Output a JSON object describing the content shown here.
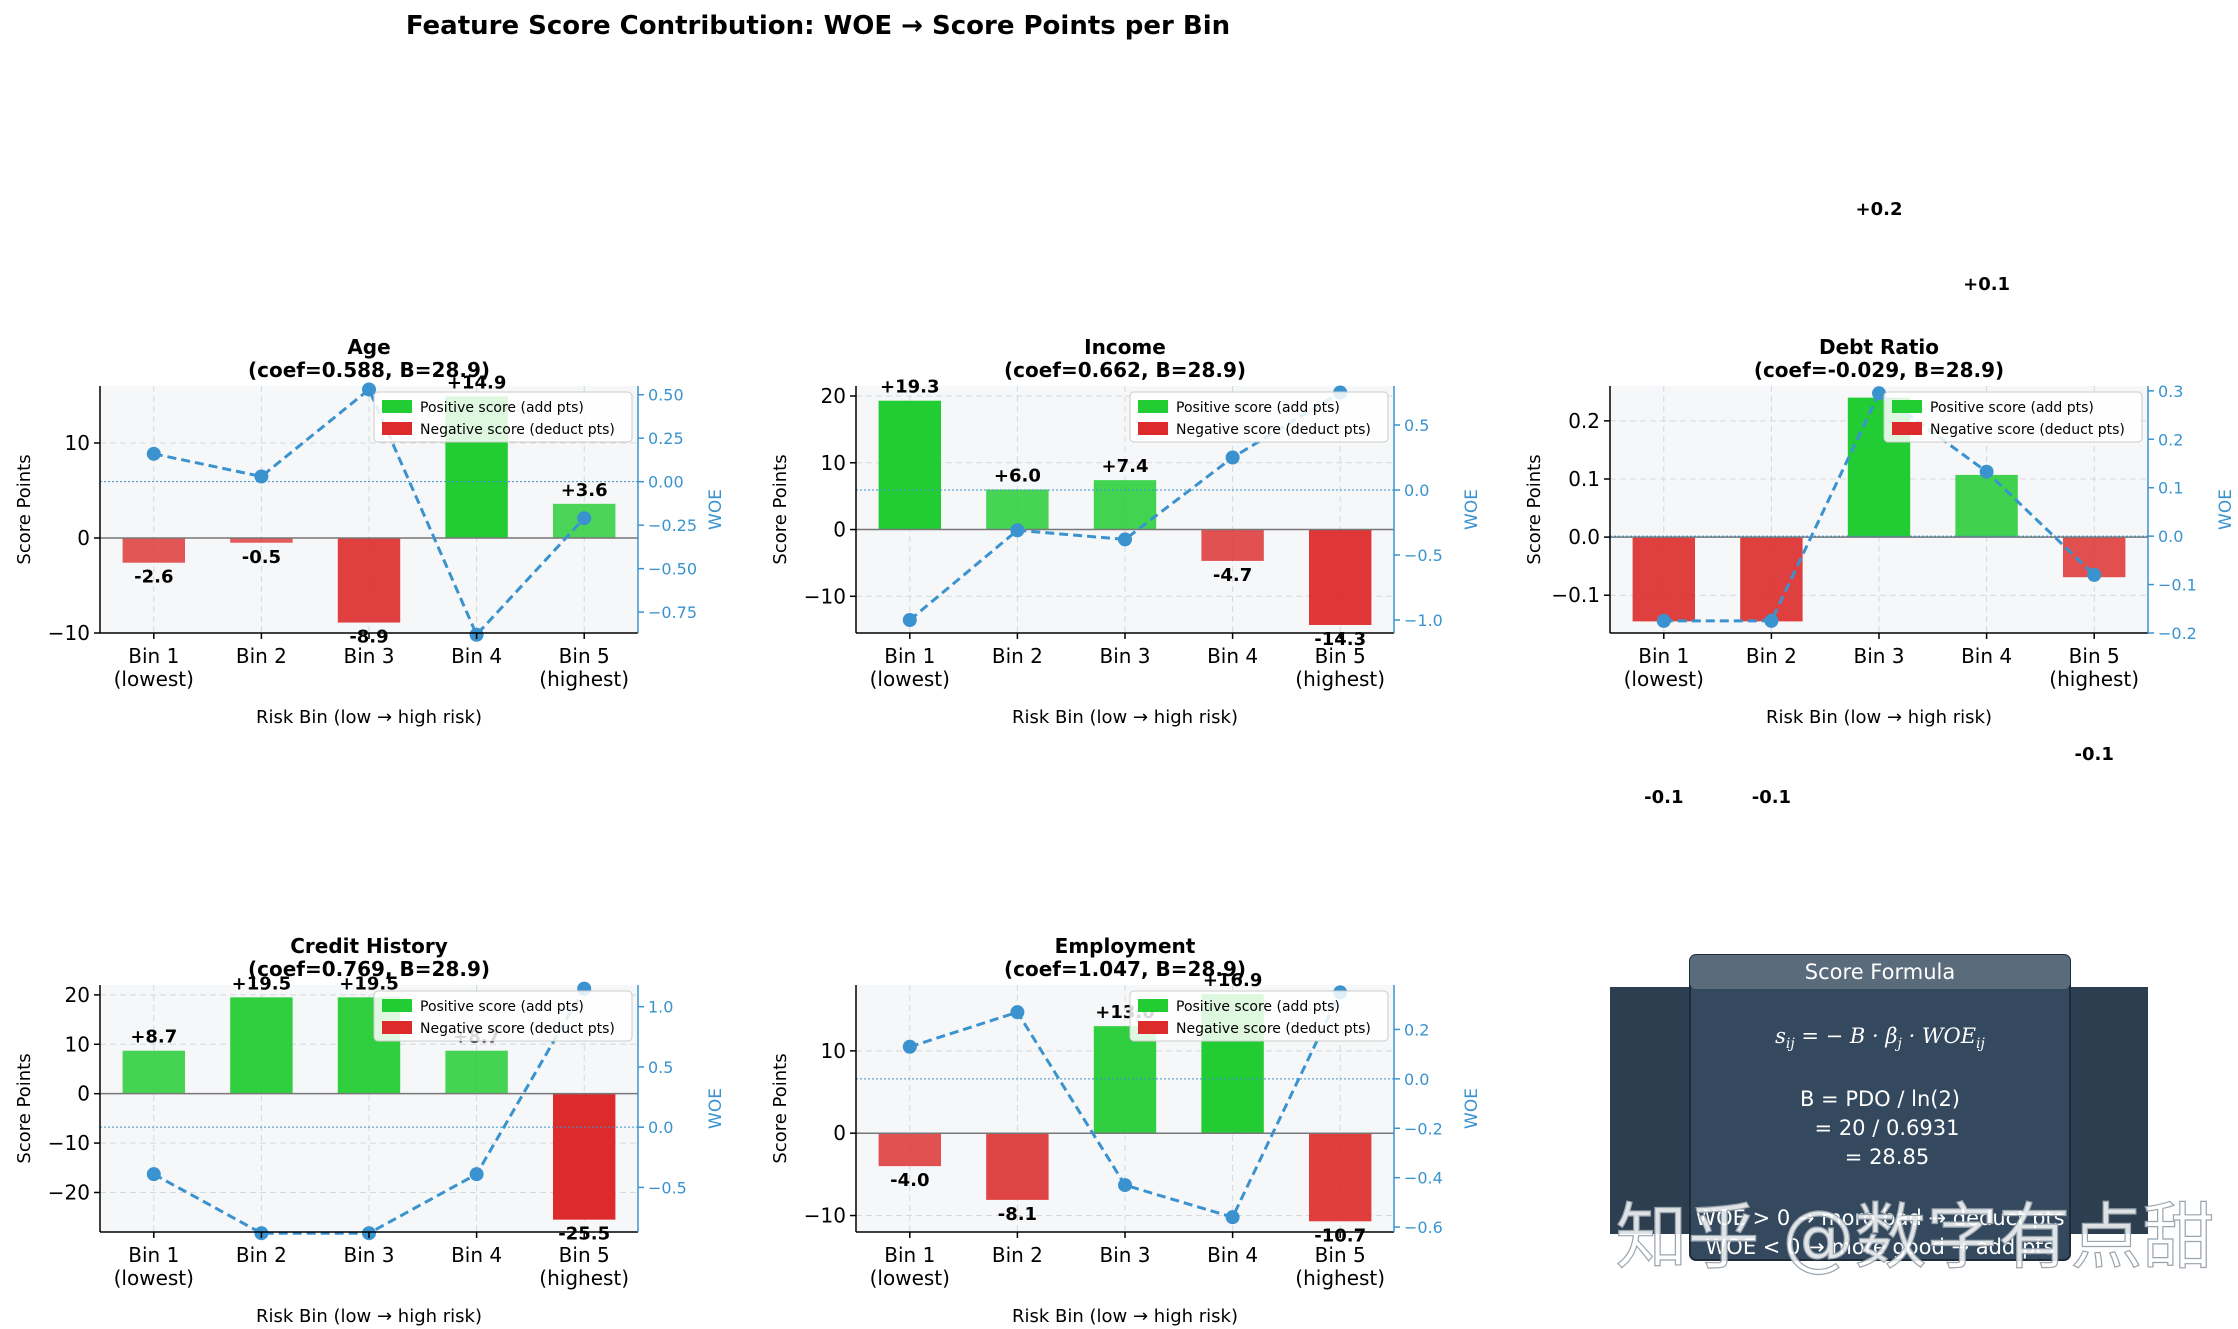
{
  "figure_title": "Feature Score Contribution: WOE → Score Points per Bin",
  "colors": {
    "positive": "#22cc33",
    "negative": "#dd2a2a",
    "woe_line": "#3a93cf",
    "panel_bg": "#f6f7f9",
    "formula_box": "#2c3e50",
    "formula_box_header": "#5a6b7c"
  },
  "legend": {
    "positive": "Positive score (add pts)",
    "negative": "Negative score (deduct pts)"
  },
  "chart_data": [
    {
      "type": "bar",
      "feature": "Age",
      "title": "Age\n(coef=0.588, B=28.9)",
      "categories": [
        "Bin 1\n(lowest)",
        "Bin 2",
        "Bin 3",
        "Bin 4",
        "Bin 5\n(highest)"
      ],
      "xlabel": "Risk Bin (low → high risk)",
      "ylabel": "Score Points",
      "ylabel_right": "WOE",
      "ylim": [
        -10,
        16
      ],
      "yticks": [
        -10,
        0,
        10
      ],
      "woe_ylim": [
        -0.87,
        0.55
      ],
      "woe_yticks": [
        -0.75,
        -0.5,
        -0.25,
        0.0,
        0.25,
        0.5
      ],
      "woe_ytick_labels": [
        "−0.75",
        "−0.50",
        "−0.25",
        "0.00",
        "0.25",
        "0.50"
      ],
      "series": [
        {
          "values": [
            -2.6,
            -0.5,
            -8.9,
            14.9,
            3.6
          ],
          "labels": [
            "-2.6",
            "-0.5",
            "-8.9",
            "+14.9",
            "+3.6"
          ]
        },
        {
          "name": "WOE",
          "values": [
            0.16,
            0.03,
            0.53,
            -0.88,
            -0.21
          ]
        }
      ],
      "legend_position": "upper right",
      "grid": true
    },
    {
      "type": "bar",
      "feature": "Income",
      "title": "Income\n(coef=0.662, B=28.9)",
      "categories": [
        "Bin 1\n(lowest)",
        "Bin 2",
        "Bin 3",
        "Bin 4",
        "Bin 5\n(highest)"
      ],
      "xlabel": "Risk Bin (low → high risk)",
      "ylabel": "Score Points",
      "ylabel_right": "WOE",
      "ylim": [
        -15.5,
        21.5
      ],
      "yticks": [
        -10,
        0,
        10,
        20
      ],
      "woe_ylim": [
        -1.1,
        0.8
      ],
      "woe_yticks": [
        -1.0,
        -0.5,
        0.0,
        0.5
      ],
      "woe_ytick_labels": [
        "−1.0",
        "−0.5",
        "0.0",
        "0.5"
      ],
      "series": [
        {
          "values": [
            19.3,
            6.0,
            7.4,
            -4.7,
            -14.3
          ],
          "labels": [
            "+19.3",
            "+6.0",
            "+7.4",
            "-4.7",
            "-14.3"
          ]
        },
        {
          "name": "WOE",
          "values": [
            -1.0,
            -0.31,
            -0.38,
            0.25,
            0.75
          ]
        }
      ],
      "legend_position": "upper right",
      "grid": true
    },
    {
      "type": "bar",
      "feature": "Debt Ratio",
      "title": "Debt Ratio\n(coef=-0.029, B=28.9)",
      "categories": [
        "Bin 1\n(lowest)",
        "Bin 2",
        "Bin 3",
        "Bin 4",
        "Bin 5\n(highest)"
      ],
      "xlabel": "Risk Bin (low → high risk)",
      "ylabel": "Score Points",
      "ylabel_right": "WOE",
      "ylim": [
        -0.165,
        0.26
      ],
      "yticks": [
        -0.1,
        0.0,
        0.1,
        0.2
      ],
      "ytick_labels": [
        "−0.1",
        "0.0",
        "0.1",
        "0.2"
      ],
      "woe_ylim": [
        -0.2,
        0.31
      ],
      "woe_yticks": [
        -0.2,
        -0.1,
        0.0,
        0.1,
        0.2,
        0.3
      ],
      "woe_ytick_labels": [
        "−0.2",
        "−0.1",
        "0.0",
        "0.1",
        "0.2",
        "0.3"
      ],
      "series": [
        {
          "values": [
            -0.145,
            -0.145,
            0.24,
            0.107,
            -0.069
          ],
          "labels": [
            "-0.1",
            "-0.1",
            "+0.2",
            "+0.1",
            "-0.1"
          ]
        },
        {
          "name": "WOE",
          "values": [
            -0.175,
            -0.175,
            0.295,
            0.133,
            -0.08
          ]
        }
      ],
      "legend_position": "upper right",
      "grid": true
    },
    {
      "type": "bar",
      "feature": "Credit History",
      "title": "Credit History\n(coef=0.769, B=28.9)",
      "categories": [
        "Bin 1\n(lowest)",
        "Bin 2",
        "Bin 3",
        "Bin 4",
        "Bin 5\n(highest)"
      ],
      "xlabel": "Risk Bin (low → high risk)",
      "ylabel": "Score Points",
      "ylabel_right": "WOE",
      "ylim": [
        -28,
        22
      ],
      "yticks": [
        -20,
        -10,
        0,
        10,
        20
      ],
      "ytick_labels": [
        "−20",
        "−10",
        "0",
        "10",
        "20"
      ],
      "woe_ylim": [
        -0.87,
        1.18
      ],
      "woe_yticks": [
        -0.5,
        0.0,
        0.5,
        1.0
      ],
      "woe_ytick_labels": [
        "−0.5",
        "0.0",
        "0.5",
        "1.0"
      ],
      "series": [
        {
          "values": [
            8.7,
            19.5,
            19.5,
            8.7,
            -25.5
          ],
          "labels": [
            "+8.7",
            "+19.5",
            "+19.5",
            "+8.7",
            "-25.5"
          ]
        },
        {
          "name": "WOE",
          "values": [
            -0.39,
            -0.88,
            -0.88,
            -0.39,
            1.15
          ]
        }
      ],
      "legend_position": "upper right",
      "grid": true
    },
    {
      "type": "bar",
      "feature": "Employment",
      "title": "Employment\n(coef=1.047, B=28.9)",
      "categories": [
        "Bin 1\n(lowest)",
        "Bin 2",
        "Bin 3",
        "Bin 4",
        "Bin 5\n(highest)"
      ],
      "xlabel": "Risk Bin (low → high risk)",
      "ylabel": "Score Points",
      "ylabel_right": "WOE",
      "ylim": [
        -12,
        18
      ],
      "yticks": [
        -10,
        0,
        10
      ],
      "ytick_labels": [
        "−10",
        "0",
        "10"
      ],
      "woe_ylim": [
        -0.62,
        0.38
      ],
      "woe_yticks": [
        -0.6,
        -0.4,
        -0.2,
        0.0,
        0.2
      ],
      "woe_ytick_labels": [
        "−0.6",
        "−0.4",
        "−0.2",
        "0.0",
        "0.2"
      ],
      "series": [
        {
          "values": [
            -4.0,
            -8.1,
            13.0,
            16.9,
            -10.7
          ],
          "labels": [
            "-4.0",
            "-8.1",
            "+13.0",
            "+16.9",
            "-10.7"
          ]
        },
        {
          "name": "WOE",
          "values": [
            0.13,
            0.27,
            -0.43,
            -0.56,
            0.35
          ]
        }
      ],
      "legend_position": "upper right",
      "grid": true
    }
  ],
  "formula_box": {
    "title": "Score Formula",
    "equation": "sij = − B · βj · WOEij",
    "line_b": "B = PDO / ln(2)",
    "line_calc1": "= 20 / 0.6931",
    "line_calc2": "= 28.85",
    "line_woe_pos": "WOE > 0 → more bad → deduct pts",
    "line_woe_neg": "WOE < 0 → more good → add pts"
  },
  "watermark": "知乎 @数字有点甜"
}
